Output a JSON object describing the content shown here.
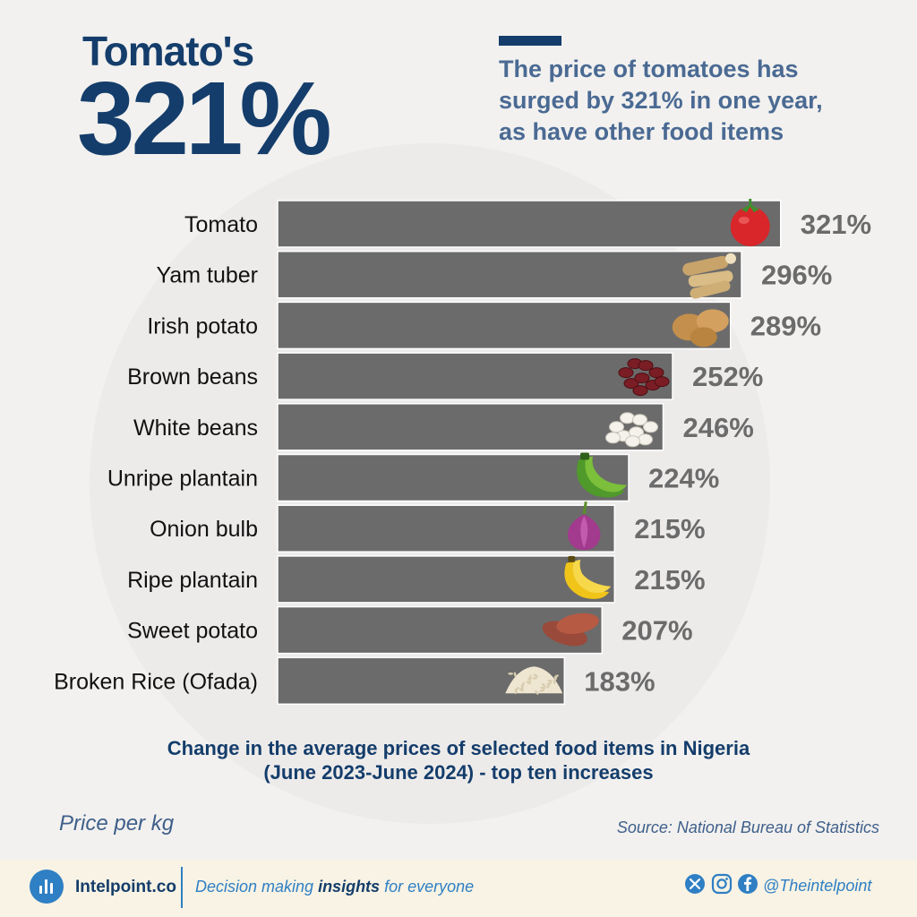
{
  "header": {
    "eyebrow": "Tomato's",
    "big_value": "321%",
    "subtitle_lines": [
      "The price of tomatoes has",
      "surged by 321% in one year,",
      "as have other food items"
    ]
  },
  "chart_data": {
    "type": "bar",
    "orientation": "horizontal",
    "categories": [
      "Tomato",
      "Yam tuber",
      "Irish potato",
      "Brown beans",
      "White beans",
      "Unripe plantain",
      "Onion bulb",
      "Ripe plantain",
      "Sweet potato",
      "Broken Rice (Ofada)"
    ],
    "values": [
      321,
      296,
      289,
      252,
      246,
      224,
      215,
      215,
      207,
      183
    ],
    "value_labels": [
      "321%",
      "296%",
      "289%",
      "252%",
      "246%",
      "224%",
      "215%",
      "215%",
      "207%",
      "183%"
    ],
    "title_lines": [
      "Change in the average prices of selected food items in Nigeria",
      "(June 2023-June 2024) - top ten increases"
    ],
    "bar_color": "#6b6b6b",
    "label_color": "#6b6b6b",
    "icons": [
      "tomato-icon",
      "yam-icon",
      "irish-potato-icon",
      "brown-beans-icon",
      "white-beans-icon",
      "unripe-plantain-icon",
      "onion-icon",
      "ripe-plantain-icon",
      "sweet-potato-icon",
      "rice-icon"
    ]
  },
  "notes": {
    "unit": "Price per kg",
    "source": "Source: National Bureau of Statistics"
  },
  "footer": {
    "brand": "Intelpoint.co",
    "tagline_prefix": "Decision making ",
    "tagline_bold": "insights",
    "tagline_suffix": " for everyone",
    "handle": "@Theintelpoint"
  },
  "colors": {
    "brand_navy": "#143d6b",
    "brand_blue": "#2f7fc4",
    "subtitle": "#4a6a93",
    "background": "#f2f1ef"
  }
}
